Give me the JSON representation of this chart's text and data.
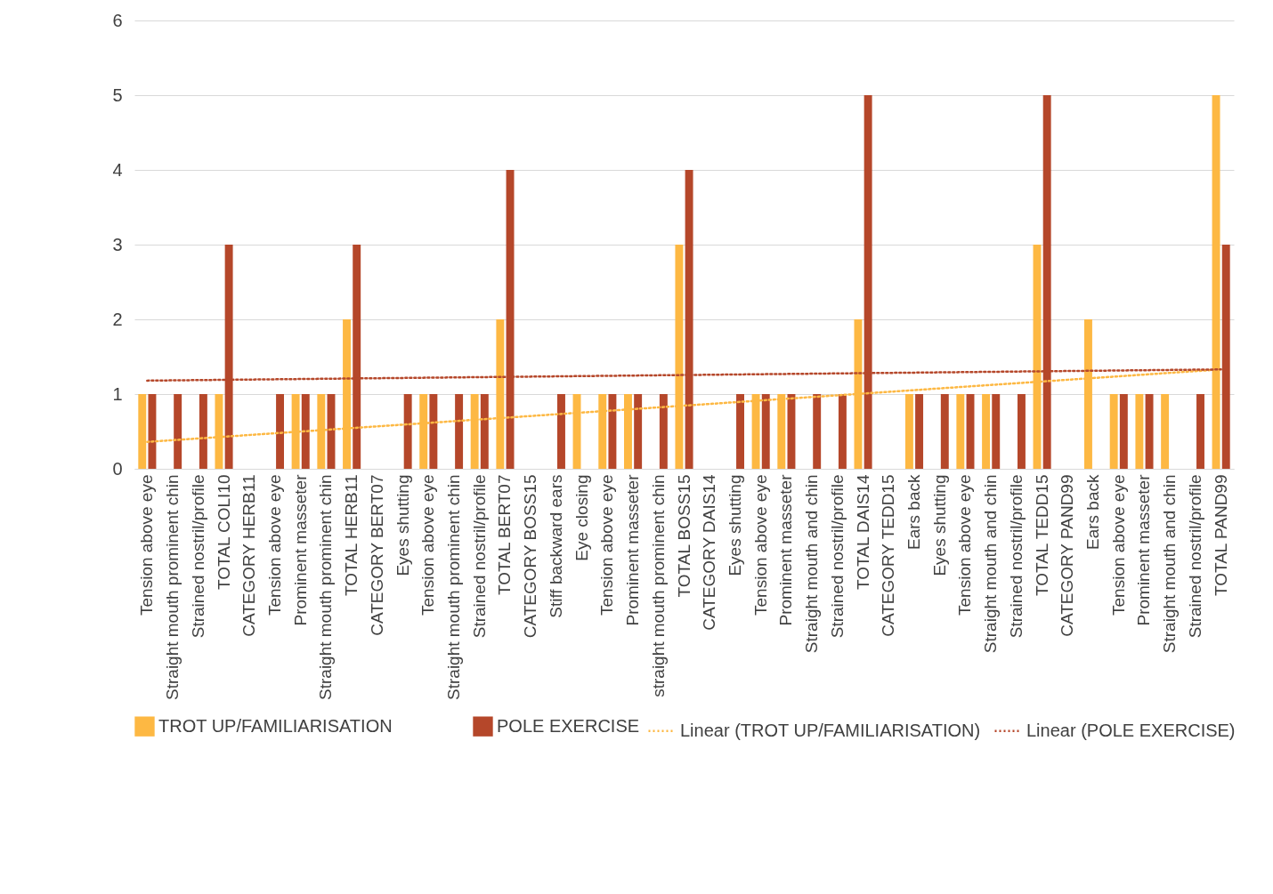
{
  "chart_data": {
    "type": "bar",
    "categories": [
      "Tension above eye",
      "Straight mouth prominent chin",
      "Strained nostril/profile",
      "TOTAL COLI10",
      "CATEGORY HERB11",
      "Tension above eye",
      "Prominent masseter",
      "Straight mouth prominent chin",
      "TOTAL HERB11",
      "CATEGORY BERT07",
      "Eyes shutting",
      "Tension above eye",
      "Straight mouth prominent chin",
      "Strained nostril/profile",
      "TOTAL BERT07",
      "CATEGORY BOSS15",
      "Stiff backward ears",
      "Eye closing",
      "Tension above eye",
      "Prominent masseter",
      "straight mouth prominent chin",
      "TOTAL BOSS15",
      "CATEGORY DAIS14",
      "Eyes shutting",
      "Tension above eye",
      "Prominent masseter",
      "Straight mouth and chin",
      "Strained nostril/profile",
      "TOTAL DAIS14",
      "CATEGORY TEDD15",
      "Ears back",
      "Eyes shutting",
      "Tension above eye",
      "Straight mouth and chin",
      "Strained nostril/profile",
      "TOTAL TEDD15",
      "CATEGORY PAND99",
      "Ears back",
      "Tension above eye",
      "Prominent masseter",
      "Straight mouth and chin",
      "Strained nostril/profile",
      "TOTAL PAND99"
    ],
    "series": [
      {
        "name": "TROT UP/FAMILIARISATION",
        "color": "#fdb843",
        "values": [
          1,
          null,
          null,
          1,
          null,
          null,
          1,
          1,
          2,
          null,
          null,
          1,
          null,
          1,
          2,
          null,
          null,
          1,
          1,
          1,
          null,
          3,
          null,
          null,
          1,
          1,
          null,
          null,
          2,
          null,
          1,
          null,
          1,
          1,
          null,
          3,
          null,
          2,
          1,
          1,
          1,
          null,
          5
        ]
      },
      {
        "name": "POLE EXERCISE",
        "color": "#b5472a",
        "values": [
          1,
          1,
          1,
          3,
          null,
          1,
          1,
          1,
          3,
          null,
          1,
          1,
          1,
          1,
          4,
          null,
          1,
          null,
          1,
          1,
          1,
          4,
          null,
          1,
          1,
          1,
          1,
          1,
          5,
          null,
          1,
          1,
          1,
          1,
          1,
          5,
          null,
          null,
          1,
          1,
          null,
          1,
          3
        ]
      },
      {
        "name": "Linear (TROT UP/FAMILIARISATION)",
        "type": "line",
        "line_style": "dotted",
        "color": "#fdb843",
        "values": [
          0.36,
          null,
          null,
          null,
          null,
          null,
          null,
          null,
          null,
          null,
          null,
          null,
          null,
          null,
          null,
          null,
          null,
          null,
          null,
          null,
          null,
          null,
          null,
          null,
          null,
          null,
          null,
          null,
          null,
          null,
          null,
          null,
          null,
          null,
          null,
          null,
          null,
          null,
          null,
          null,
          null,
          null,
          1.33
        ]
      },
      {
        "name": "Linear (POLE EXERCISE)",
        "type": "line",
        "line_style": "dotted",
        "color": "#b5472a",
        "values": [
          1.18,
          null,
          null,
          null,
          null,
          null,
          null,
          null,
          null,
          null,
          null,
          null,
          null,
          null,
          null,
          null,
          null,
          null,
          null,
          null,
          null,
          null,
          null,
          null,
          null,
          null,
          null,
          null,
          null,
          null,
          null,
          null,
          null,
          null,
          null,
          null,
          null,
          null,
          null,
          null,
          null,
          null,
          1.33
        ]
      }
    ],
    "ylim": [
      0,
      6
    ],
    "yticks": [
      0,
      1,
      2,
      3,
      4,
      5,
      6
    ],
    "grid": "y",
    "legend": "bottom"
  }
}
